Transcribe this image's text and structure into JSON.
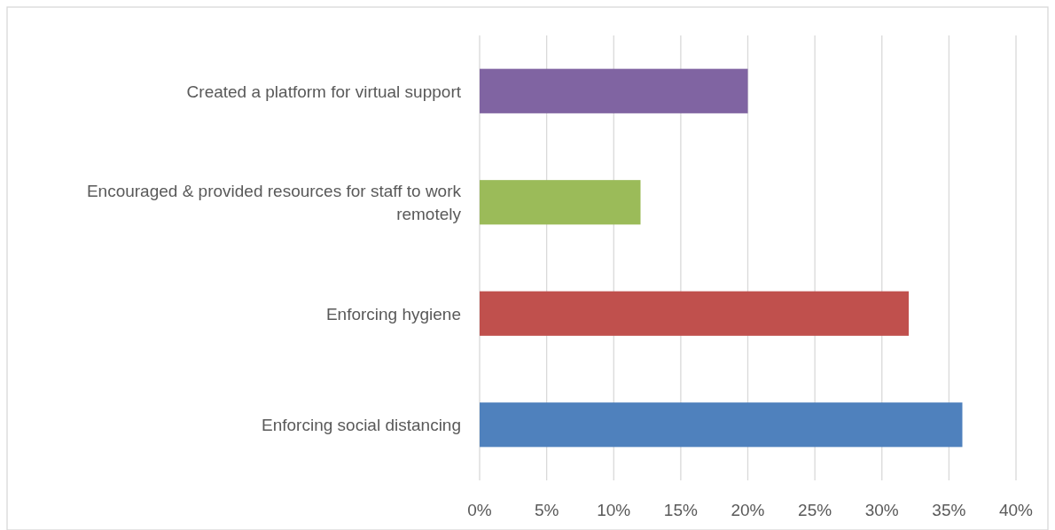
{
  "chart_data": {
    "type": "bar",
    "orientation": "horizontal",
    "categories": [
      "Created a platform for virtual support",
      "Encouraged & provided resources for staff to work remotely",
      "Enforcing hygiene",
      "Enforcing social distancing"
    ],
    "values": [
      20,
      12,
      32,
      36
    ],
    "colors": [
      "#8064a2",
      "#9bbb59",
      "#c0504d",
      "#4f81bd"
    ],
    "xlim": [
      0,
      40
    ],
    "xticks": [
      {
        "value": 0,
        "label": "0%"
      },
      {
        "value": 5,
        "label": "5%"
      },
      {
        "value": 10,
        "label": "10%"
      },
      {
        "value": 15,
        "label": "15%"
      },
      {
        "value": 20,
        "label": "20%"
      },
      {
        "value": 25,
        "label": "25%"
      },
      {
        "value": 30,
        "label": "30%"
      },
      {
        "value": 35,
        "label": "35%"
      },
      {
        "value": 40,
        "label": "40%"
      }
    ],
    "grid": "x"
  }
}
